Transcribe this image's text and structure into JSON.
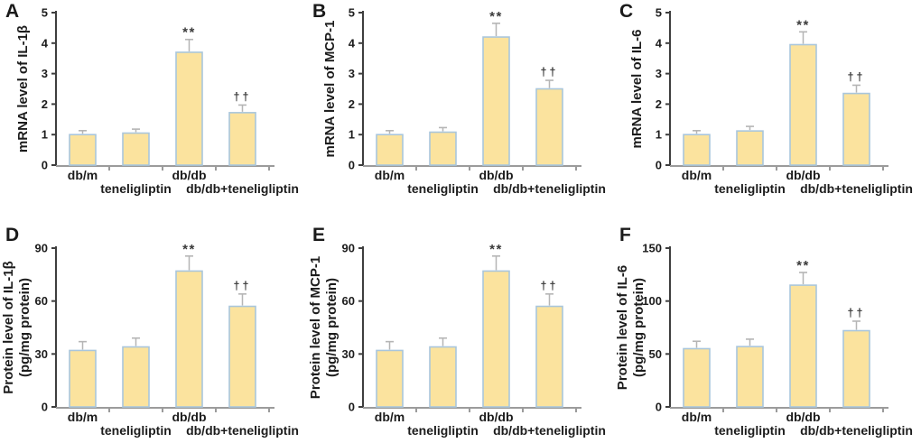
{
  "figure": {
    "background": "#ffffff"
  },
  "style": {
    "bar_fill": "#FBE39E",
    "bar_border": "#A9C6DC",
    "error_color": "#B5B5B5",
    "yaxis_color": "#3E3E3E",
    "xaxis_color": "#9B9B9B",
    "text_color": "#1C1C1C",
    "annotation_color": "#3A3A3A"
  },
  "chart_data": [
    {
      "type": "bar",
      "panel": "A",
      "title": "",
      "ylabel_lines": [
        "mRNA level of IL-1β"
      ],
      "xlabel": "",
      "categories": [
        "db/m",
        "teneligliptin",
        "db/db",
        "db/db+teneligliptin"
      ],
      "values": [
        1.0,
        1.05,
        3.7,
        1.72
      ],
      "errors": [
        0.13,
        0.13,
        0.42,
        0.25
      ],
      "annotations": [
        "",
        "",
        "**",
        "††"
      ],
      "ylim": [
        0,
        5
      ],
      "yticks": [
        0,
        1,
        2,
        3,
        4,
        5
      ],
      "grid": false,
      "legend": null
    },
    {
      "type": "bar",
      "panel": "B",
      "title": "",
      "ylabel_lines": [
        "mRNA level of MCP-1"
      ],
      "xlabel": "",
      "categories": [
        "db/m",
        "teneligliptin",
        "db/db",
        "db/db+teneligliptin"
      ],
      "values": [
        1.0,
        1.08,
        4.2,
        2.5
      ],
      "errors": [
        0.13,
        0.15,
        0.45,
        0.28
      ],
      "annotations": [
        "",
        "",
        "**",
        "††"
      ],
      "ylim": [
        0,
        5
      ],
      "yticks": [
        0,
        1,
        2,
        3,
        4,
        5
      ],
      "grid": false,
      "legend": null
    },
    {
      "type": "bar",
      "panel": "C",
      "title": "",
      "ylabel_lines": [
        "mRNA level of IL-6"
      ],
      "xlabel": "",
      "categories": [
        "db/m",
        "teneligliptin",
        "db/db",
        "db/db+teneligliptin"
      ],
      "values": [
        1.0,
        1.12,
        3.95,
        2.35
      ],
      "errors": [
        0.13,
        0.15,
        0.42,
        0.27
      ],
      "annotations": [
        "",
        "",
        "**",
        "††"
      ],
      "ylim": [
        0,
        5
      ],
      "yticks": [
        0,
        1,
        2,
        3,
        4,
        5
      ],
      "grid": false,
      "legend": null
    },
    {
      "type": "bar",
      "panel": "D",
      "title": "",
      "ylabel_lines": [
        "Protein level of IL-1β",
        "(pg/mg protein)"
      ],
      "xlabel": "",
      "categories": [
        "db/m",
        "teneligliptin",
        "db/db",
        "db/db+teneligliptin"
      ],
      "values": [
        32,
        34,
        77,
        57
      ],
      "errors": [
        5,
        5,
        8.5,
        7
      ],
      "annotations": [
        "",
        "",
        "**",
        "††"
      ],
      "ylim": [
        0,
        90
      ],
      "yticks": [
        0,
        30,
        60,
        90
      ],
      "grid": false,
      "legend": null
    },
    {
      "type": "bar",
      "panel": "E",
      "title": "",
      "ylabel_lines": [
        "Protein level of MCP-1",
        "(pg/mg protein)"
      ],
      "xlabel": "",
      "categories": [
        "db/m",
        "teneligliptin",
        "db/db",
        "db/db+teneligliptin"
      ],
      "values": [
        32,
        34,
        77,
        57
      ],
      "errors": [
        5,
        5,
        8.5,
        7
      ],
      "annotations": [
        "",
        "",
        "**",
        "††"
      ],
      "ylim": [
        0,
        90
      ],
      "yticks": [
        0,
        30,
        60,
        90
      ],
      "grid": false,
      "legend": null
    },
    {
      "type": "bar",
      "panel": "F",
      "title": "",
      "ylabel_lines": [
        "Protein level of IL-6",
        "(pg/mg protein)"
      ],
      "xlabel": "",
      "categories": [
        "db/m",
        "teneligliptin",
        "db/db",
        "db/db+teneligliptin"
      ],
      "values": [
        55,
        57,
        115,
        72
      ],
      "errors": [
        7,
        7,
        12,
        9
      ],
      "annotations": [
        "",
        "",
        "**",
        "††"
      ],
      "ylim": [
        0,
        150
      ],
      "yticks": [
        0,
        50,
        100,
        150
      ],
      "grid": false,
      "legend": null
    }
  ]
}
